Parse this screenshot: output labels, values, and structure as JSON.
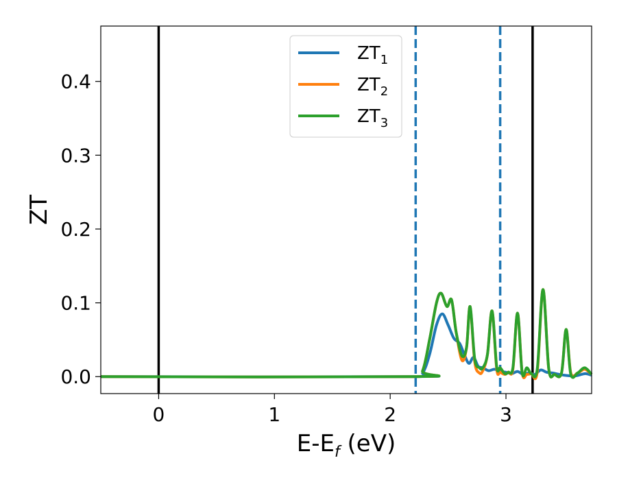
{
  "chart_data": {
    "type": "line",
    "title": "",
    "xlabel": {
      "base": "E-E",
      "sub": "f",
      "suffix": " (eV)"
    },
    "ylabel": "ZT",
    "xlim": [
      -0.5,
      3.74
    ],
    "ylim": [
      -0.023,
      0.475
    ],
    "x_ticks": [
      0,
      1,
      2,
      3
    ],
    "x_tick_labels": [
      "0",
      "1",
      "2",
      "3"
    ],
    "y_ticks": [
      0.0,
      0.1,
      0.2,
      0.3,
      0.4
    ],
    "y_tick_labels": [
      "0.0",
      "0.1",
      "0.2",
      "0.3",
      "0.4"
    ],
    "grid": false,
    "legend": {
      "position": "top-center",
      "entries": [
        {
          "base": "ZT",
          "sub": "1",
          "color": "#1f77b4"
        },
        {
          "base": "ZT",
          "sub": "2",
          "color": "#ff7f0e"
        },
        {
          "base": "ZT",
          "sub": "3",
          "color": "#2ca02c"
        }
      ]
    },
    "vlines": [
      {
        "x": 0.0,
        "style": "solid",
        "color": "#000000"
      },
      {
        "x": 3.23,
        "style": "solid",
        "color": "#000000"
      },
      {
        "x": 2.22,
        "style": "dashed",
        "color": "#1f77b4"
      },
      {
        "x": 2.95,
        "style": "dashed",
        "color": "#1f77b4"
      }
    ],
    "series": [
      {
        "name": "ZT₁",
        "color": "#1f77b4",
        "x": [
          -0.5,
          2.2,
          2.28,
          2.34,
          2.4,
          2.45,
          2.5,
          2.55,
          2.6,
          2.64,
          2.68,
          2.72,
          2.76,
          2.8,
          2.85,
          2.9,
          2.95,
          3.0,
          3.05,
          3.1,
          3.15,
          3.2,
          3.25,
          3.3,
          3.35,
          3.4,
          3.5,
          3.6,
          3.68,
          3.74
        ],
        "y": [
          0.0,
          0.0,
          0.005,
          0.03,
          0.07,
          0.085,
          0.07,
          0.052,
          0.045,
          0.03,
          0.018,
          0.026,
          0.014,
          0.012,
          0.008,
          0.01,
          0.007,
          0.006,
          0.004,
          0.007,
          0.003,
          0.005,
          0.003,
          0.009,
          0.006,
          0.005,
          0.002,
          0.001,
          0.004,
          0.002
        ]
      },
      {
        "name": "ZT₂",
        "color": "#ff7f0e",
        "x": [
          -0.5,
          2.2,
          2.28,
          2.34,
          2.4,
          2.44,
          2.49,
          2.53,
          2.57,
          2.62,
          2.66,
          2.69,
          2.73,
          2.77,
          2.8,
          2.84,
          2.88,
          2.92,
          2.95,
          2.99,
          3.02,
          3.06,
          3.1,
          3.14,
          3.18,
          3.22,
          3.27,
          3.32,
          3.37,
          3.42,
          3.48,
          3.52,
          3.56,
          3.62,
          3.68,
          3.74
        ],
        "y": [
          0.0,
          0.0,
          0.008,
          0.05,
          0.1,
          0.113,
          0.095,
          0.104,
          0.06,
          0.022,
          0.04,
          0.095,
          0.02,
          0.005,
          0.008,
          0.03,
          0.089,
          0.01,
          0.006,
          0.003,
          0.006,
          0.01,
          0.086,
          0.005,
          0.003,
          0.004,
          0.006,
          0.118,
          0.01,
          0.003,
          0.005,
          0.064,
          0.005,
          0.005,
          0.01,
          0.003
        ]
      },
      {
        "name": "ZT₃",
        "color": "#2ca02c",
        "x": [
          -0.5,
          2.2,
          2.28,
          2.34,
          2.4,
          2.44,
          2.49,
          2.53,
          2.57,
          2.62,
          2.66,
          2.69,
          2.73,
          2.77,
          2.8,
          2.84,
          2.88,
          2.92,
          2.95,
          2.99,
          3.02,
          3.06,
          3.1,
          3.14,
          3.18,
          3.22,
          3.27,
          3.32,
          3.37,
          3.42,
          3.48,
          3.52,
          3.56,
          3.62,
          3.68,
          3.74
        ],
        "y": [
          0.0,
          0.0,
          0.008,
          0.05,
          0.1,
          0.113,
          0.095,
          0.104,
          0.06,
          0.028,
          0.04,
          0.095,
          0.024,
          0.012,
          0.012,
          0.03,
          0.089,
          0.013,
          0.012,
          0.004,
          0.006,
          0.012,
          0.086,
          0.005,
          0.012,
          0.004,
          0.01,
          0.118,
          0.01,
          0.003,
          0.005,
          0.064,
          0.003,
          0.005,
          0.012,
          0.003
        ]
      }
    ]
  }
}
